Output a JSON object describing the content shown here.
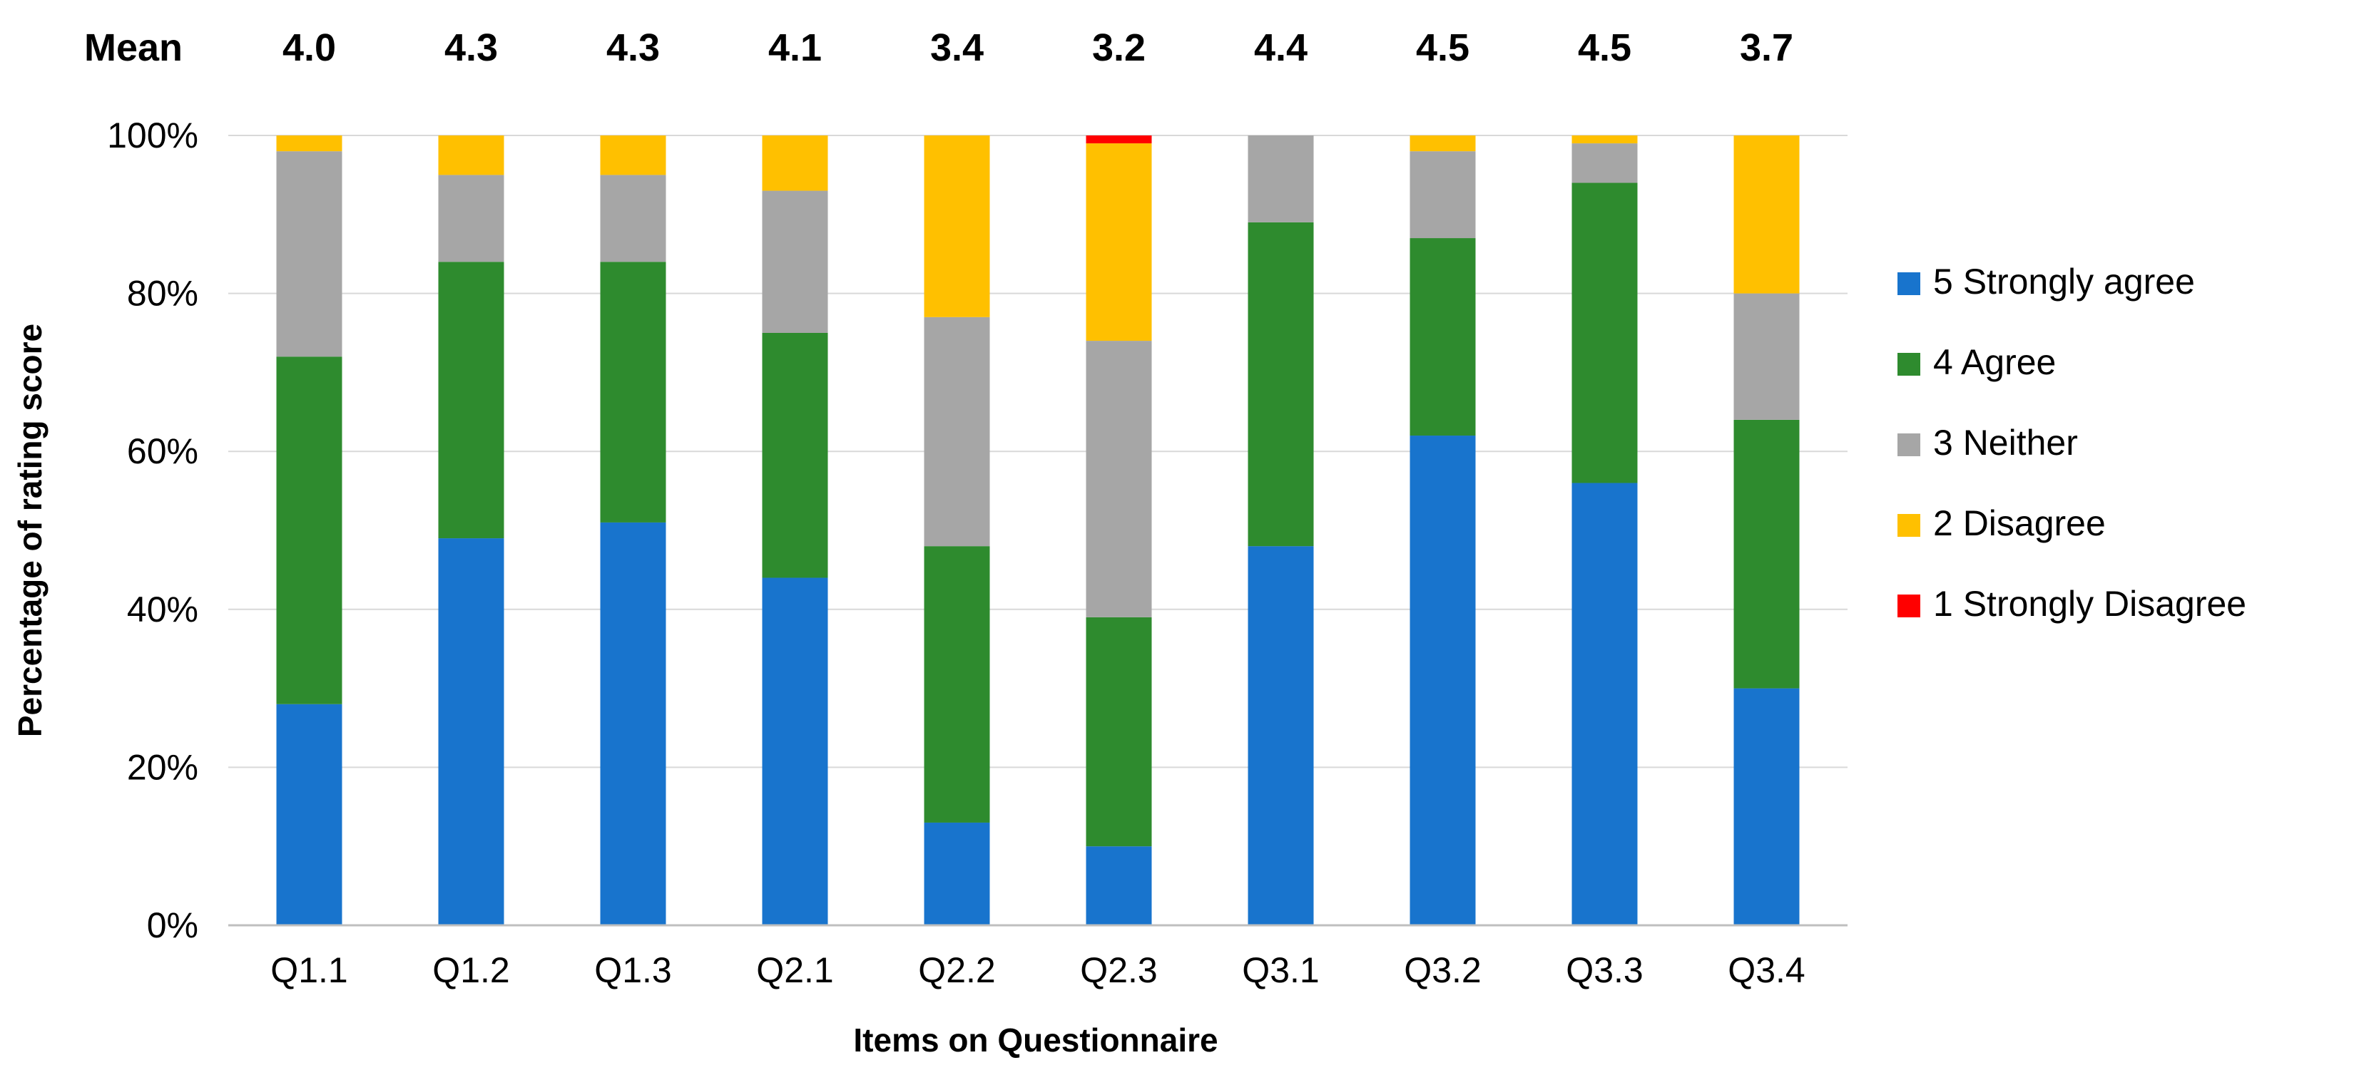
{
  "chart_data": {
    "type": "bar",
    "stacked": true,
    "percent": true,
    "xlabel": "Items on Questionnaire",
    "ylabel": "Percentage of rating score",
    "ylim": [
      0,
      100
    ],
    "yticks": [
      "0%",
      "20%",
      "40%",
      "60%",
      "80%",
      "100%"
    ],
    "grid": true,
    "legend_position": "right",
    "mean_header": "Mean",
    "means": [
      "4.0",
      "4.3",
      "4.3",
      "4.1",
      "3.4",
      "3.2",
      "4.4",
      "4.5",
      "4.5",
      "3.7"
    ],
    "categories": [
      "Q1.1",
      "Q1.2",
      "Q1.3",
      "Q2.1",
      "Q2.2",
      "Q2.3",
      "Q3.1",
      "Q3.2",
      "Q3.3",
      "Q3.4"
    ],
    "series": [
      {
        "name": "5 Strongly agree",
        "color": "#1874CD",
        "values": [
          28,
          49,
          51,
          44,
          13,
          10,
          48,
          62,
          56,
          30
        ]
      },
      {
        "name": "4 Agree",
        "color": "#2E8B2E",
        "values": [
          44,
          35,
          33,
          31,
          35,
          29,
          41,
          25,
          38,
          34
        ]
      },
      {
        "name": "3 Neither",
        "color": "#A6A6A6",
        "values": [
          26,
          11,
          11,
          18,
          29,
          35,
          11,
          11,
          5,
          16
        ]
      },
      {
        "name": "2 Disagree",
        "color": "#FFC000",
        "values": [
          2,
          5,
          5,
          7,
          23,
          25,
          0,
          2,
          1,
          20
        ]
      },
      {
        "name": "1 Strongly Disagree",
        "color": "#FF0000",
        "values": [
          0,
          0,
          0,
          0,
          0,
          1,
          0,
          0,
          0,
          0
        ]
      }
    ]
  }
}
